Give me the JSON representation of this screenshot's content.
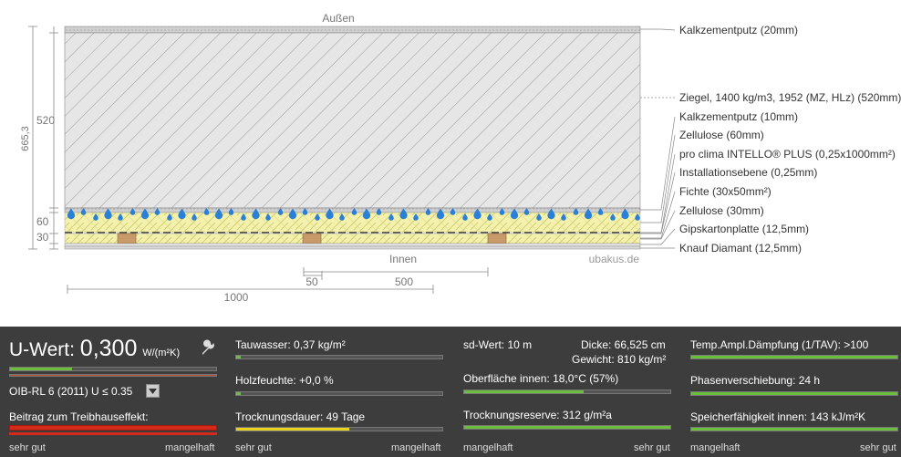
{
  "diagram": {
    "outside_label": "Außen",
    "inside_label": "Innen",
    "watermark": "ubakus.de",
    "dim_total": "665,3",
    "dim_520": "520",
    "dim_60": "60",
    "dim_30": "30",
    "scale_1000": "1000",
    "scale_50": "50",
    "scale_500": "500",
    "layers": [
      "Kalkzementputz (20mm)",
      "Ziegel, 1400 kg/m3, 1952 (MZ, HLz) (520mm)",
      "Kalkzementputz (10mm)",
      "Zellulose (60mm)",
      "pro clima INTELLO® PLUS (0,25x1000mm²)",
      "Installationsebene (0,25mm)",
      "Fichte (30x50mm²)",
      "Zellulose (30mm)",
      "Gipskartonplatte (12,5mm)",
      "Knauf Diamant (12,5mm)"
    ],
    "colors": {
      "plaster": "#c8c8c8",
      "brick": "#e3e3e3",
      "insulation": "#f2f0a8",
      "wood": "#c89a6a",
      "drops": "#2a7fd6"
    }
  },
  "panel": {
    "u_label": "U-Wert:",
    "u_value": "0,300",
    "u_unit": "W/(m²K)",
    "wrench_icon": "wrench-icon",
    "oib_label": "OIB-RL 6 (2011) U ≤ 0.35",
    "oib_dropdown_icon": "dropdown-arrow-icon",
    "greenhouse_label": "Beitrag zum Treibhauseffekt:",
    "scale_good": "sehr gut",
    "scale_bad": "mangelhaft",
    "tauwasser": "Tauwasser: 0,37 kg/m²",
    "holzfeuchte": "Holzfeuchte: +0,0 %",
    "trocknungsdauer": "Trocknungsdauer: 49 Tage",
    "sd_wert": "sd-Wert: 10 m",
    "dicke": "Dicke: 66,525 cm",
    "gewicht": "Gewicht: 810 kg/m²",
    "oberflaeche": "Oberfläche innen: 18,0°C (57%)",
    "trocknungsreserve": "Trocknungsreserve: 312 g/m²a",
    "temp_ampl": "Temp.Ampl.Dämpfung (1/TAV): >100",
    "phasen": "Phasenverschiebung: 24 h",
    "speicher": "Speicherfähigkeit innen: 143 kJ/m²K",
    "levels": {
      "u_wert": 0.3,
      "tauwasser": 0.02,
      "holzfeuchte": 0.02,
      "trocknungsdauer": 0.55,
      "oberflaeche": 0.58,
      "trocknungsreserve": 1.0,
      "temp_ampl": 1.0,
      "phasen": 1.0,
      "speicher": 1.0
    },
    "colors": {
      "panel_bg": "#3d3d3d",
      "good_green": "#6cbf3c",
      "warn_yellow": "#e8d21e",
      "bad_red": "#d42a1a"
    }
  }
}
